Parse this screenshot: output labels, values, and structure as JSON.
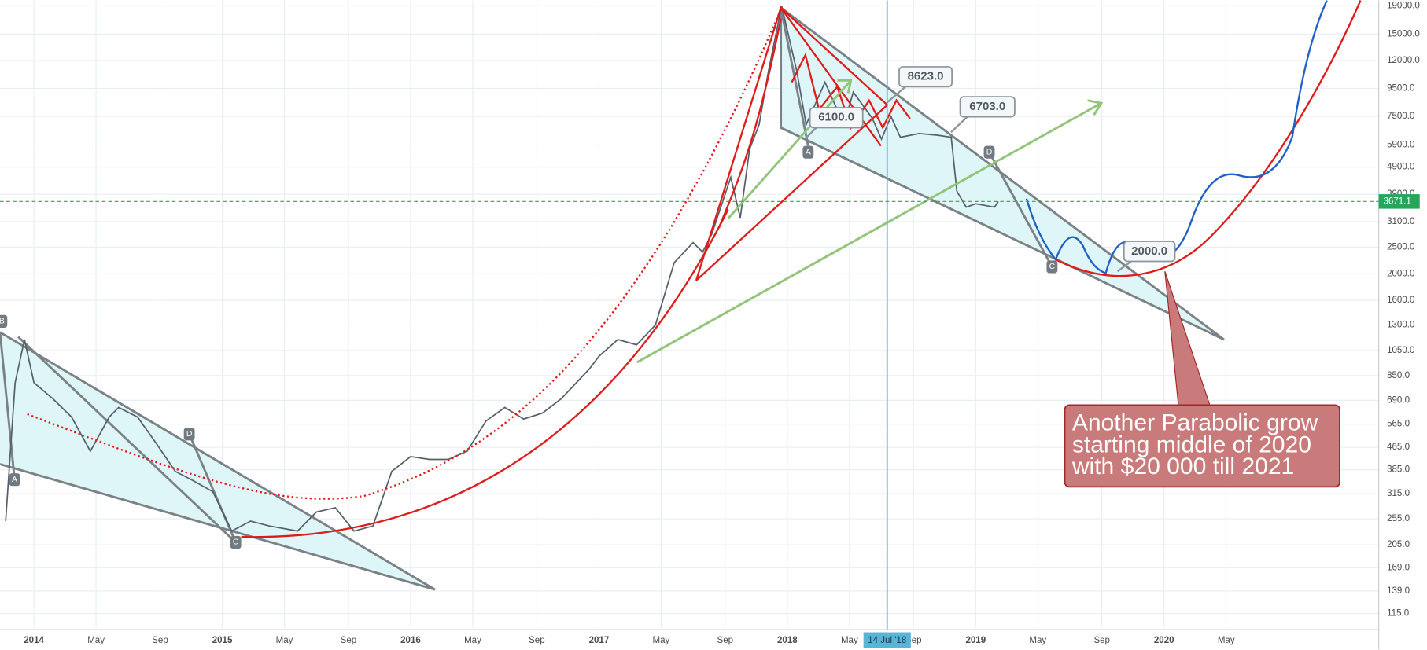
{
  "chart_data": {
    "type": "line",
    "log_scale": true,
    "grid": true,
    "xlim": [
      2013.82,
      2021.14
    ],
    "ylim": [
      102,
      19900
    ],
    "xticks": [
      2014,
      {
        "value": 2014.33,
        "label": "May"
      },
      {
        "value": 2014.67,
        "label": "Sep"
      },
      2015,
      {
        "value": 2015.33,
        "label": "May"
      },
      {
        "value": 2015.67,
        "label": "Sep"
      },
      2016,
      {
        "value": 2016.33,
        "label": "May"
      },
      {
        "value": 2016.67,
        "label": "Sep"
      },
      2017,
      {
        "value": 2017.33,
        "label": "May"
      },
      {
        "value": 2017.67,
        "label": "Sep"
      },
      2018,
      {
        "value": 2018.33,
        "label": "May"
      },
      {
        "value": 2018.67,
        "label": "Sep"
      },
      2019,
      {
        "value": 2019.33,
        "label": "May"
      },
      {
        "value": 2019.67,
        "label": "Sep"
      },
      2020,
      {
        "value": 2020.33,
        "label": "May"
      }
    ],
    "yticks": [
      {
        "value": 19000,
        "label": "19000.0"
      },
      {
        "value": 15000,
        "label": "15000.0"
      },
      {
        "value": 12000,
        "label": "12000.0"
      },
      {
        "value": 9500,
        "label": "9500.0"
      },
      {
        "value": 7500,
        "label": "7500.0"
      },
      {
        "value": 5900,
        "label": "5900.0"
      },
      {
        "value": 4900,
        "label": "4900.0"
      },
      {
        "value": 3900,
        "label": "3900.0"
      },
      {
        "value": 3100,
        "label": "3100.0"
      },
      {
        "value": 2500,
        "label": "2500.0"
      },
      {
        "value": 2000,
        "label": "2000.0"
      },
      {
        "value": 1600,
        "label": "1600.0"
      },
      {
        "value": 1300,
        "label": "1300.0"
      },
      {
        "value": 1050,
        "label": "1050.0"
      },
      {
        "value": 850,
        "label": "850.0"
      },
      {
        "value": 690,
        "label": "690.0"
      },
      {
        "value": 565,
        "label": "565.0"
      },
      {
        "value": 465,
        "label": "465.0"
      },
      {
        "value": 385,
        "label": "385.0"
      },
      {
        "value": 315,
        "label": "315.0"
      },
      {
        "value": 255,
        "label": "255.0"
      },
      {
        "value": 205,
        "label": "205.0"
      },
      {
        "value": 169,
        "label": "169.0"
      },
      {
        "value": 139,
        "label": "139.0"
      },
      {
        "value": 115,
        "label": "115.0"
      }
    ],
    "series": [
      {
        "color": "#55606a",
        "x": [
          2013.85,
          2013.9,
          2013.95,
          2014.0,
          2014.1,
          2014.2,
          2014.3,
          2014.4,
          2014.45,
          2014.55,
          2014.65,
          2014.75,
          2014.85,
          2014.95,
          2015.05,
          2015.15,
          2015.25,
          2015.4,
          2015.5,
          2015.6,
          2015.7,
          2015.8,
          2015.9,
          2016.0,
          2016.1,
          2016.2,
          2016.3,
          2016.4,
          2016.5,
          2016.6,
          2016.7,
          2016.8,
          2016.95,
          2017.0,
          2017.1,
          2017.2,
          2017.3,
          2017.4,
          2017.5,
          2017.55,
          2017.6,
          2017.7,
          2017.75,
          2017.8,
          2017.85,
          2017.9,
          2017.97,
          2018.05,
          2018.1,
          2018.2,
          2018.3,
          2018.35,
          2018.45,
          2018.5,
          2018.55,
          2018.6,
          2018.7,
          2018.8,
          2018.87,
          2018.9,
          2018.95,
          2019.0,
          2019.1,
          2019.12
        ],
        "values": [
          250,
          800,
          1150,
          800,
          700,
          600,
          450,
          600,
          650,
          600,
          480,
          380,
          350,
          320,
          230,
          250,
          240,
          230,
          270,
          280,
          230,
          240,
          380,
          430,
          420,
          420,
          450,
          580,
          650,
          590,
          620,
          700,
          900,
          1000,
          1150,
          1100,
          1300,
          2200,
          2600,
          2400,
          2800,
          4500,
          3200,
          5700,
          7000,
          11000,
          19000,
          11000,
          7000,
          10000,
          7000,
          9200,
          7400,
          6200,
          7500,
          6300,
          6500,
          6400,
          6300,
          4000,
          3500,
          3600,
          3500,
          3671.1
        ]
      }
    ],
    "last_price": 3671.1,
    "cursor": {
      "x": 2018.53,
      "label": "14 Jul '18"
    },
    "callouts": [
      {
        "value": 8623,
        "label": "8623.0"
      },
      {
        "value": 6703,
        "label": "6703.0"
      },
      {
        "value": 6100,
        "label": "6100.0"
      },
      {
        "value": 2000,
        "label": "2000.0"
      }
    ],
    "pattern_labels": [
      "B",
      "A",
      "D",
      "C",
      "A",
      "D",
      "C"
    ],
    "annotation_lines": [
      "Another Parabolic grow",
      "starting middle of 2020",
      "with $20 000 till 2021"
    ]
  }
}
